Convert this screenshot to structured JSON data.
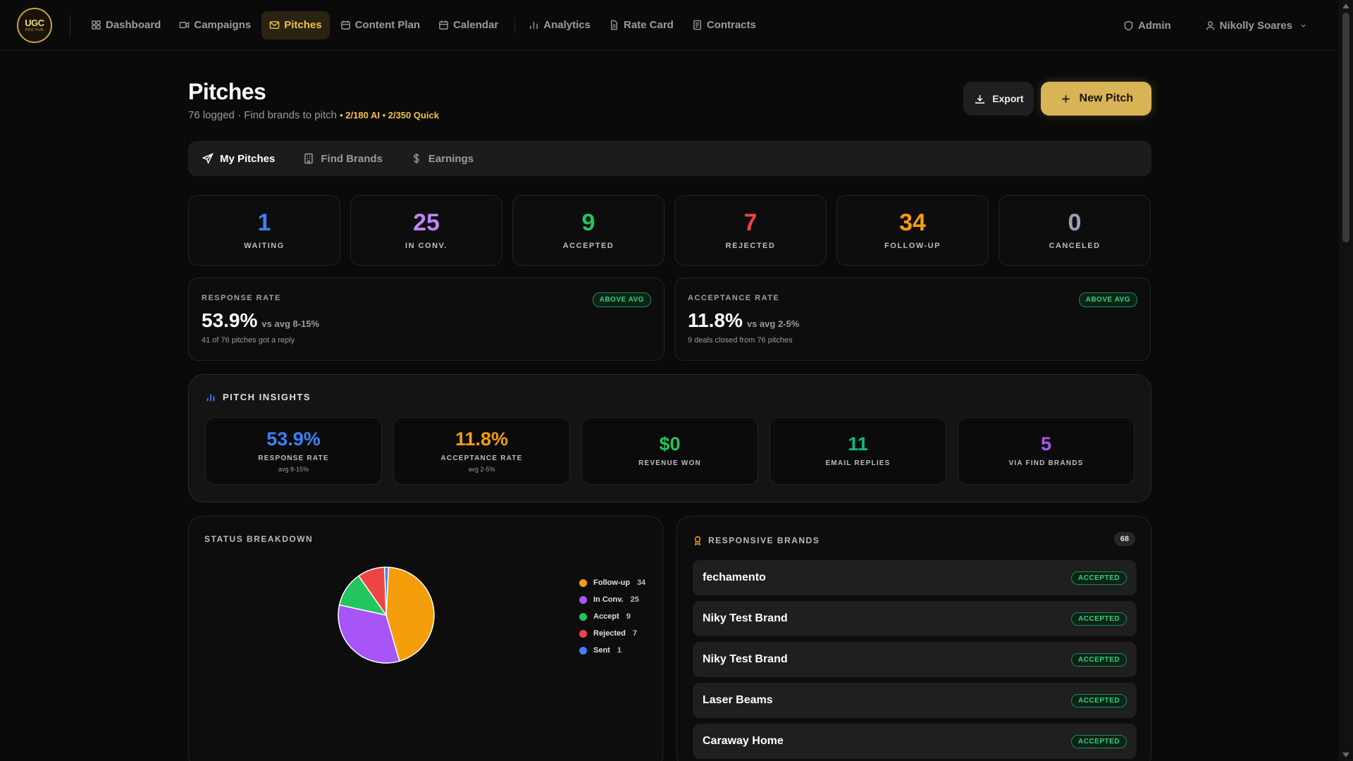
{
  "logo": {
    "line1": "UGC",
    "line2": "PRO HUB"
  },
  "nav": {
    "items": [
      {
        "label": "Dashboard",
        "icon": "grid-icon"
      },
      {
        "label": "Campaigns",
        "icon": "video-icon"
      },
      {
        "label": "Pitches",
        "icon": "mail-icon",
        "active": true
      },
      {
        "label": "Content Plan",
        "icon": "calendar-icon"
      },
      {
        "label": "Calendar",
        "icon": "calendar-icon"
      },
      {
        "label": "Analytics",
        "icon": "bar-chart-icon"
      },
      {
        "label": "Rate Card",
        "icon": "document-icon"
      },
      {
        "label": "Contracts",
        "icon": "contract-icon"
      }
    ],
    "admin_label": "Admin",
    "user_name": "Nikolly Soares"
  },
  "header": {
    "title": "Pitches",
    "subtitle": "76 logged · Find brands to pitch",
    "quota": "• 2/180 AI • 2/350 Quick",
    "export_label": "Export",
    "new_pitch_label": "New Pitch"
  },
  "tabs": [
    {
      "label": "My Pitches",
      "icon": "send-icon"
    },
    {
      "label": "Find Brands",
      "icon": "building-icon"
    },
    {
      "label": "Earnings",
      "icon": "dollar-icon"
    }
  ],
  "stats": [
    {
      "value": "1",
      "label": "WAITING",
      "color": "#3b82f6"
    },
    {
      "value": "25",
      "label": "IN CONV.",
      "color": "#c084fc"
    },
    {
      "value": "9",
      "label": "ACCEPTED",
      "color": "#22c55e"
    },
    {
      "value": "7",
      "label": "REJECTED",
      "color": "#ef4444"
    },
    {
      "value": "34",
      "label": "FOLLOW-UP",
      "color": "#f59e0b"
    },
    {
      "value": "0",
      "label": "CANCELED",
      "color": "#94a3b8"
    }
  ],
  "rates": [
    {
      "label": "RESPONSE RATE",
      "value": "53.9%",
      "vs": "vs avg 8-15%",
      "note": "41 of 76 pitches got a reply",
      "badge": "ABOVE AVG"
    },
    {
      "label": "ACCEPTANCE RATE",
      "value": "11.8%",
      "vs": "vs avg 2-5%",
      "note": "9 deals closed from 76 pitches",
      "badge": "ABOVE AVG"
    }
  ],
  "insights": {
    "title": "PITCH INSIGHTS",
    "cards": [
      {
        "value": "53.9%",
        "label": "RESPONSE RATE",
        "sub": "avg 8-15%",
        "color": "#3b82f6"
      },
      {
        "value": "11.8%",
        "label": "ACCEPTANCE RATE",
        "sub": "avg 2-5%",
        "color": "#f59e0b"
      },
      {
        "value": "$0",
        "label": "REVENUE WON",
        "sub": "",
        "color": "#22c55e"
      },
      {
        "value": "11",
        "label": "EMAIL REPLIES",
        "sub": "",
        "color": "#10b981"
      },
      {
        "value": "5",
        "label": "VIA FIND BRANDS",
        "sub": "",
        "color": "#a855f7"
      }
    ]
  },
  "breakdown": {
    "title": "STATUS BREAKDOWN"
  },
  "chart_data": {
    "type": "pie",
    "slices": [
      {
        "name": "Follow-up",
        "value": 34,
        "color": "#f59e0b"
      },
      {
        "name": "In Conv.",
        "value": 25,
        "color": "#a855f7"
      },
      {
        "name": "Accept",
        "value": 9,
        "color": "#22c55e"
      },
      {
        "name": "Rejected",
        "value": 7,
        "color": "#ef4444"
      },
      {
        "name": "Sent",
        "value": 1,
        "color": "#3b82f6"
      }
    ],
    "legend": "right"
  },
  "responsive": {
    "title": "RESPONSIVE BRANDS",
    "count": "68",
    "rows": [
      {
        "name": "fechamento",
        "status": "ACCEPTED"
      },
      {
        "name": "Niky Test Brand",
        "status": "ACCEPTED"
      },
      {
        "name": "Niky Test Brand",
        "status": "ACCEPTED"
      },
      {
        "name": "Laser Beams",
        "status": "ACCEPTED"
      },
      {
        "name": "Caraway Home",
        "status": "ACCEPTED"
      }
    ]
  }
}
